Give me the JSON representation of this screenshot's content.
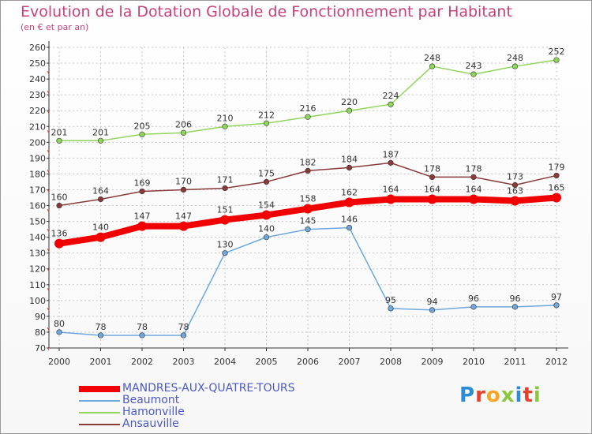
{
  "header": {
    "title": "Evolution de la Dotation Globale de Fonctionnement par Habitant",
    "subtitle": "(en € et par an)"
  },
  "logo": {
    "letters": [
      "P",
      "r",
      "o",
      "x",
      "i",
      "t",
      "i"
    ],
    "colors": [
      "#2e8bd6",
      "#e5422e",
      "#f5a623",
      "#8cc63f",
      "#2e8bd6",
      "#e5422e",
      "#8cc63f"
    ]
  },
  "colors": {
    "title": "#c8407c",
    "axis": "#333333",
    "grid": "#c8c8c8",
    "legend_text": "#4b59c8"
  },
  "chart_data": {
    "type": "line",
    "title": "Evolution de la Dotation Globale de Fonctionnement par Habitant",
    "subtitle": "(en € et par an)",
    "x": [
      "2000",
      "2001",
      "2002",
      "2003",
      "2004",
      "2005",
      "2006",
      "2007",
      "2008",
      "2009",
      "2010",
      "2011",
      "2012"
    ],
    "ylim": [
      70,
      260
    ],
    "yticks": [
      70,
      80,
      90,
      100,
      110,
      120,
      130,
      140,
      150,
      160,
      170,
      180,
      190,
      200,
      210,
      220,
      230,
      240,
      250,
      260
    ],
    "grid": true,
    "legend_position": "bottom-left",
    "series": [
      {
        "name": "Hamonville",
        "color": "#8fd65a",
        "emphasis": false,
        "values": [
          201,
          201,
          205,
          206,
          210,
          212,
          216,
          220,
          224,
          248,
          243,
          248,
          252
        ],
        "labels": [
          "201",
          "201",
          "205",
          "206",
          "210",
          "212",
          "216",
          "220",
          "224",
          "248",
          "243",
          "248",
          "252"
        ]
      },
      {
        "name": "Ansauville",
        "color": "#8b3a3a",
        "emphasis": false,
        "values": [
          160,
          164,
          169,
          170,
          171,
          175,
          182,
          184,
          187,
          178,
          178,
          173,
          179
        ],
        "labels": [
          "160",
          "164",
          "169",
          "170",
          "171",
          "175",
          "182",
          "184",
          "187",
          "178",
          "178",
          "173",
          "179"
        ]
      },
      {
        "name": "Beaumont",
        "color": "#6fa8dc",
        "emphasis": false,
        "values": [
          80,
          78,
          78,
          78,
          130,
          140,
          145,
          146,
          95,
          94,
          96,
          96,
          97
        ],
        "labels": [
          "80",
          "78",
          "78",
          "78",
          "130",
          "140",
          "145",
          "146",
          "95",
          "94",
          "96",
          "96",
          "97"
        ]
      },
      {
        "name": "MANDRES-AUX-QUATRE-TOURS",
        "color": "#f00000",
        "emphasis": true,
        "values": [
          136,
          140,
          147,
          147,
          151,
          154,
          158,
          162,
          164,
          164,
          164,
          163,
          165
        ],
        "labels": [
          "136",
          "140",
          "147",
          "147",
          "151",
          "154",
          "158",
          "162",
          "164",
          "164",
          "164",
          "163",
          "165"
        ]
      }
    ],
    "legend": [
      {
        "name": "MANDRES-AUX-QUATRE-TOURS",
        "color": "#f00000"
      },
      {
        "name": "Beaumont",
        "color": "#6fa8dc"
      },
      {
        "name": "Hamonville",
        "color": "#8fd65a"
      },
      {
        "name": "Ansauville",
        "color": "#8b3a3a"
      }
    ]
  }
}
